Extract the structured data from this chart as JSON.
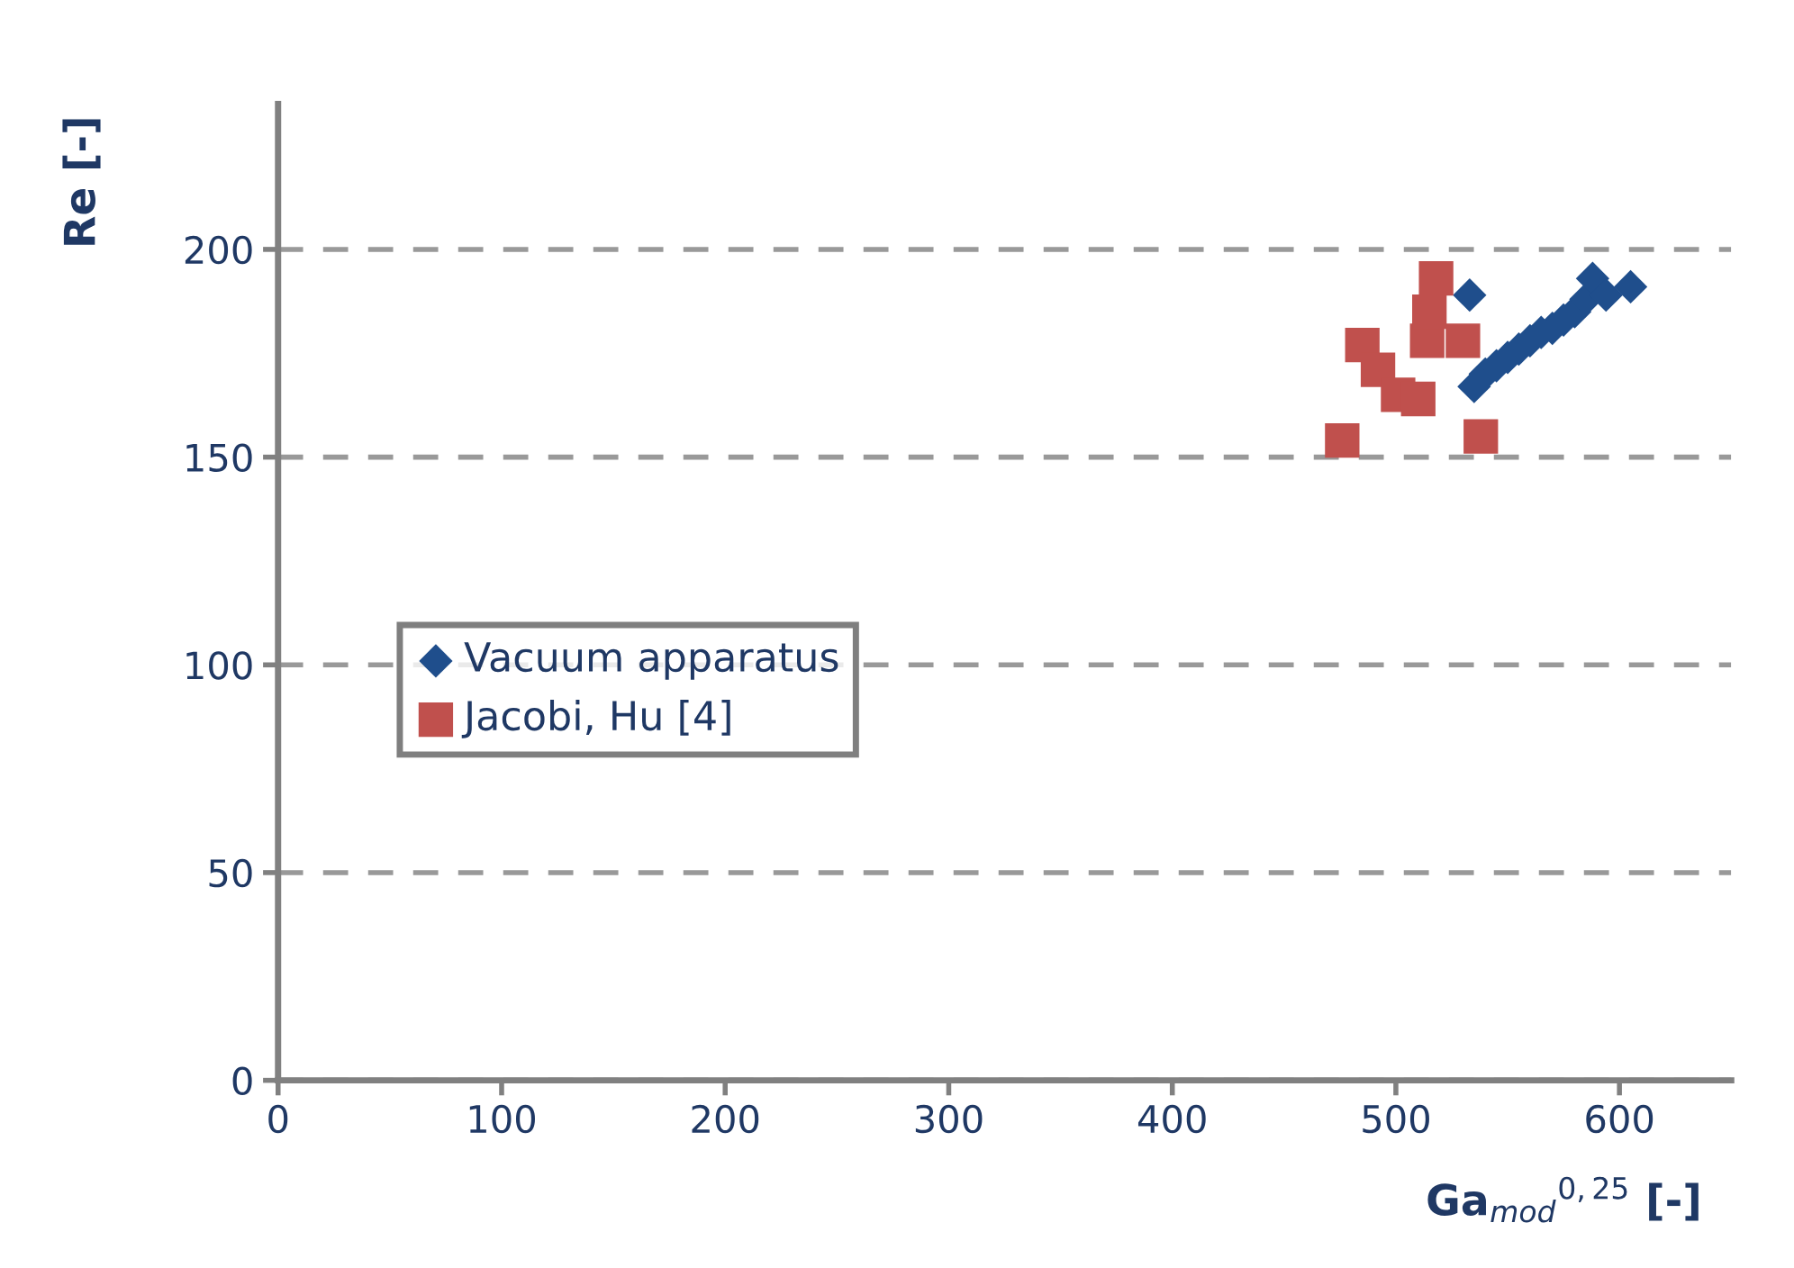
{
  "chart_data": {
    "type": "scatter",
    "xlabel": "Ga$_{mod}$$^{0,25}$ [-]",
    "ylabel": "Re [-]",
    "xlim": [
      0,
      650
    ],
    "ylim": [
      0,
      235
    ],
    "xticks": [
      0,
      100,
      200,
      300,
      400,
      500,
      600
    ],
    "yticks": [
      0,
      50,
      100,
      150,
      200
    ],
    "grid": "y",
    "legend": "left",
    "series": [
      {
        "name": "Vacuum apparatus",
        "color": "#1f4e8c",
        "marker": "diamond",
        "x": [
          533,
          535,
          540,
          545,
          550,
          555,
          560,
          565,
          570,
          575,
          580,
          585,
          588,
          594,
          605
        ],
        "values": [
          189,
          167,
          170,
          172,
          174,
          176,
          178,
          180,
          181,
          183,
          185,
          188,
          193,
          189,
          191
        ]
      },
      {
        "name": "Jacobi, Hu [4]",
        "color": "#c0504d",
        "marker": "square",
        "x": [
          476,
          538,
          485,
          492,
          501,
          510,
          518,
          530,
          514,
          515
        ],
        "values": [
          154,
          155,
          177,
          171,
          165,
          164,
          193,
          178,
          178,
          185
        ]
      }
    ]
  }
}
